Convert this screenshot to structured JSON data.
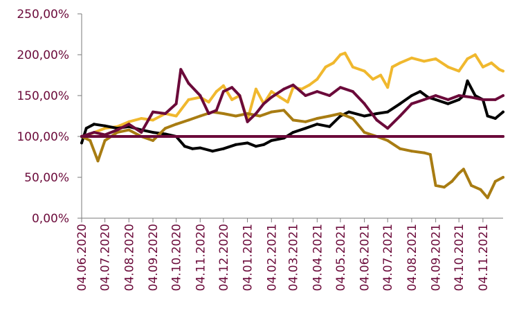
{
  "chart_data": {
    "type": "line",
    "title": "",
    "xlabel": "",
    "ylabel": "",
    "ylim": [
      0,
      250
    ],
    "y_ticks": [
      0,
      50,
      100,
      150,
      200,
      250
    ],
    "y_tick_labels": [
      "0,00%",
      "50,00%",
      "100,00%",
      "150,00%",
      "200,00%",
      "250,00%"
    ],
    "x_range": [
      "2020-06-04",
      "2021-11-30"
    ],
    "x_ticks": [
      "2020-06-04",
      "2020-07-04",
      "2020-08-04",
      "2020-09-04",
      "2020-10-04",
      "2020-11-04",
      "2020-12-04",
      "2021-01-04",
      "2021-02-04",
      "2021-03-04",
      "2021-04-04",
      "2021-05-04",
      "2021-06-04",
      "2021-07-04",
      "2021-08-04",
      "2021-09-04",
      "2021-10-04",
      "2021-11-04"
    ],
    "x_tick_labels": [
      "04.06.2020",
      "04.07.2020",
      "04.08.2020",
      "04.09.2020",
      "04.10.2020",
      "04.11.2020",
      "04.12.2020",
      "04.01.2021",
      "04.02.2021",
      "04.03.2021",
      "04.04.2021",
      "04.05.2021",
      "04.06.2021",
      "04.07.2021",
      "04.08.2021",
      "04.09.2021",
      "04.10.2021",
      "04.11.2021"
    ],
    "grid": false,
    "legend": "none",
    "series": [
      {
        "color": "#f0b82e",
        "x": [
          "2020-06-04",
          "2020-06-15",
          "2020-07-04",
          "2020-07-20",
          "2020-08-04",
          "2020-08-20",
          "2020-09-04",
          "2020-09-20",
          "2020-10-04",
          "2020-10-20",
          "2020-11-04",
          "2020-11-15",
          "2020-11-25",
          "2020-12-04",
          "2020-12-15",
          "2020-12-25",
          "2021-01-04",
          "2021-01-15",
          "2021-01-25",
          "2021-02-04",
          "2021-02-15",
          "2021-02-25",
          "2021-03-04",
          "2021-03-15",
          "2021-03-25",
          "2021-04-04",
          "2021-04-15",
          "2021-04-25",
          "2021-05-04",
          "2021-05-10",
          "2021-05-20",
          "2021-06-04",
          "2021-06-15",
          "2021-06-25",
          "2021-07-04",
          "2021-07-10",
          "2021-07-20",
          "2021-08-04",
          "2021-08-20",
          "2021-09-04",
          "2021-09-20",
          "2021-10-04",
          "2021-10-15",
          "2021-10-25",
          "2021-11-04",
          "2021-11-15",
          "2021-11-25",
          "2021-11-30"
        ],
        "y": [
          100,
          103,
          110,
          112,
          118,
          122,
          120,
          128,
          125,
          145,
          148,
          142,
          155,
          162,
          145,
          150,
          120,
          158,
          140,
          155,
          148,
          142,
          160,
          158,
          163,
          170,
          185,
          190,
          200,
          202,
          185,
          180,
          170,
          175,
          160,
          185,
          190,
          196,
          192,
          195,
          185,
          180,
          195,
          200,
          185,
          190,
          182,
          180
        ]
      },
      {
        "color": "#000000",
        "x": [
          "2020-06-04",
          "2020-06-10",
          "2020-06-20",
          "2020-07-04",
          "2020-07-20",
          "2020-08-04",
          "2020-08-20",
          "2020-09-04",
          "2020-09-20",
          "2020-10-04",
          "2020-10-15",
          "2020-10-25",
          "2020-11-04",
          "2020-11-20",
          "2020-12-04",
          "2020-12-20",
          "2021-01-04",
          "2021-01-15",
          "2021-01-25",
          "2021-02-04",
          "2021-02-20",
          "2021-03-04",
          "2021-03-20",
          "2021-04-04",
          "2021-04-20",
          "2021-05-04",
          "2021-05-15",
          "2021-06-04",
          "2021-06-20",
          "2021-07-04",
          "2021-07-20",
          "2021-08-04",
          "2021-08-15",
          "2021-08-25",
          "2021-09-04",
          "2021-09-20",
          "2021-10-04",
          "2021-10-10",
          "2021-10-15",
          "2021-10-25",
          "2021-11-04",
          "2021-11-10",
          "2021-11-20",
          "2021-11-30"
        ],
        "y": [
          92,
          110,
          115,
          113,
          110,
          112,
          108,
          105,
          103,
          100,
          88,
          85,
          86,
          82,
          85,
          90,
          92,
          88,
          90,
          95,
          98,
          105,
          110,
          115,
          112,
          125,
          130,
          125,
          128,
          130,
          140,
          150,
          155,
          148,
          145,
          140,
          145,
          150,
          168,
          150,
          145,
          125,
          122,
          130
        ]
      },
      {
        "color": "#a87c12",
        "x": [
          "2020-06-04",
          "2020-06-15",
          "2020-06-25",
          "2020-07-04",
          "2020-07-20",
          "2020-08-04",
          "2020-08-20",
          "2020-09-04",
          "2020-09-20",
          "2020-10-04",
          "2020-10-20",
          "2020-11-04",
          "2020-11-20",
          "2020-12-04",
          "2020-12-20",
          "2021-01-04",
          "2021-01-20",
          "2021-02-04",
          "2021-02-20",
          "2021-03-04",
          "2021-03-20",
          "2021-04-04",
          "2021-04-20",
          "2021-05-04",
          "2021-05-20",
          "2021-06-04",
          "2021-06-20",
          "2021-07-04",
          "2021-07-20",
          "2021-08-04",
          "2021-08-20",
          "2021-08-28",
          "2021-09-04",
          "2021-09-15",
          "2021-09-25",
          "2021-10-04",
          "2021-10-10",
          "2021-10-20",
          "2021-11-01",
          "2021-11-10",
          "2021-11-20",
          "2021-11-30"
        ],
        "y": [
          100,
          95,
          70,
          95,
          105,
          108,
          100,
          95,
          110,
          115,
          120,
          125,
          130,
          128,
          125,
          128,
          125,
          130,
          132,
          120,
          118,
          122,
          125,
          128,
          122,
          105,
          100,
          95,
          85,
          82,
          80,
          78,
          40,
          38,
          45,
          55,
          60,
          40,
          35,
          25,
          45,
          50
        ]
      },
      {
        "color": "#6b0a3a",
        "x": [
          "2020-06-04",
          "2020-06-20",
          "2020-07-04",
          "2020-07-20",
          "2020-08-04",
          "2020-08-20",
          "2020-09-04",
          "2020-09-20",
          "2020-10-04",
          "2020-10-10",
          "2020-10-20",
          "2020-11-04",
          "2020-11-15",
          "2020-11-25",
          "2020-12-04",
          "2020-12-15",
          "2020-12-25",
          "2021-01-04",
          "2021-01-15",
          "2021-01-25",
          "2021-02-04",
          "2021-02-20",
          "2021-03-04",
          "2021-03-20",
          "2021-04-04",
          "2021-04-20",
          "2021-05-04",
          "2021-05-20",
          "2021-06-04",
          "2021-06-20",
          "2021-07-04",
          "2021-07-20",
          "2021-08-04",
          "2021-08-20",
          "2021-09-04",
          "2021-09-20",
          "2021-10-04",
          "2021-10-20",
          "2021-11-04",
          "2021-11-20",
          "2021-11-30"
        ],
        "y": [
          100,
          105,
          102,
          108,
          115,
          105,
          130,
          128,
          140,
          182,
          165,
          150,
          128,
          132,
          155,
          160,
          150,
          118,
          128,
          140,
          148,
          158,
          163,
          150,
          155,
          150,
          160,
          155,
          140,
          120,
          110,
          125,
          140,
          145,
          150,
          145,
          150,
          148,
          145,
          145,
          150
        ]
      },
      {
        "color": "#6b0a3a",
        "x": [
          "2020-06-04",
          "2021-11-30"
        ],
        "y": [
          100,
          100
        ]
      }
    ]
  }
}
